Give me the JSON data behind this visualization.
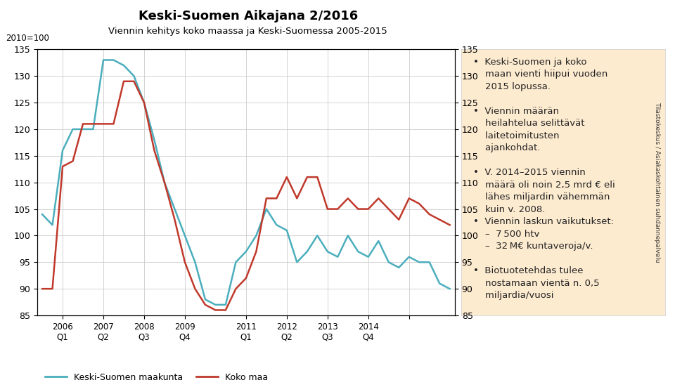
{
  "title": "Keski-Suomen Aikajana 2/2016",
  "subtitle": "Viennin kehitys koko maassa ja Keski-Suomessa 2005-2015",
  "ylabel_left": "2010=100",
  "ylabel_right": "Tilastokeskus / Asiakaskohtainen suhdannepalvelu",
  "ylim": [
    85,
    135
  ],
  "yticks": [
    85,
    90,
    95,
    100,
    105,
    110,
    115,
    120,
    125,
    130,
    135
  ],
  "legend_labels": [
    "Keski-Suomen maakunta",
    "Koko maa"
  ],
  "line_blue_color": "#4BAEBD",
  "line_red_color": "#C0392B",
  "panel_bg_color": "#FDEBD0",
  "blue_x": [
    0,
    1,
    2,
    3,
    4,
    5,
    6,
    7,
    8,
    9,
    10,
    11,
    12,
    13,
    14,
    15,
    16,
    17,
    18,
    19,
    20,
    21,
    22,
    23,
    24,
    25,
    26,
    27,
    28,
    29,
    30,
    31,
    32,
    33,
    34,
    35,
    36,
    37,
    38,
    39,
    40
  ],
  "blue_y": [
    104,
    102,
    116,
    120,
    120,
    120,
    133,
    133,
    132,
    130,
    125,
    118,
    110,
    105,
    100,
    95,
    88,
    87,
    87,
    95,
    97,
    100,
    105,
    102,
    101,
    95,
    97,
    100,
    97,
    96,
    100,
    97,
    96,
    99,
    95,
    94,
    96,
    95,
    95,
    91,
    90
  ],
  "red_x": [
    0,
    1,
    2,
    3,
    4,
    5,
    6,
    7,
    8,
    9,
    10,
    11,
    12,
    13,
    14,
    15,
    16,
    17,
    18,
    19,
    20,
    21,
    22,
    23,
    24,
    25,
    26,
    27,
    28,
    29,
    30,
    31,
    32,
    33,
    34,
    35,
    36,
    37,
    38,
    39,
    40
  ],
  "red_y": [
    90,
    90,
    113,
    114,
    121,
    121,
    121,
    121,
    129,
    129,
    125,
    116,
    110,
    103,
    95,
    90,
    87,
    86,
    86,
    90,
    92,
    97,
    107,
    107,
    111,
    107,
    111,
    111,
    105,
    105,
    107,
    105,
    105,
    107,
    105,
    103,
    107,
    106,
    104,
    103,
    102
  ],
  "xtick_positions": [
    2,
    6,
    10,
    14,
    20,
    24,
    28,
    32,
    36
  ],
  "xtick_labels": [
    "2006\nQ1",
    "2007\nQ2",
    "2008\nQ3",
    "2009\nQ4",
    "2011\nQ1",
    "2012\nQ2",
    "2013\nQ3",
    "2014\nQ4",
    ""
  ],
  "panel_text": "•  Keski-Suomen ja koko\n    maan vienti hiipui vuoden\n    2015 lopussa.\n\n•  Viennin määrän\n    heilahtelua selittävät\n    laitetoimitusten\n    ajankohdat.\n\n•  V. 2014–2015 viennin\n    määrä oli noin 2,5 mrd € eli\n    lähes miljardin vähemmän\n    kuin v. 2008.\n•  Viennin laskun vaikutukset:\n    –  7 500 htv\n    –  32 M€ kuntaveroja/v.\n\n•  Biotuotetehdas tulee\n    nostamaan vientä n. 0,5\n    miljardia/vuosi"
}
